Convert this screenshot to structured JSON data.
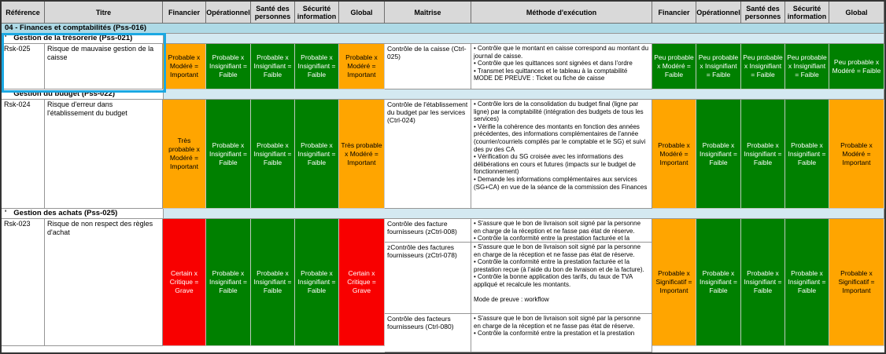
{
  "table": {
    "columns": [
      "Référence",
      "Titre",
      "Financier",
      "Opérationnel",
      "Santé des personnes",
      "Sécurité information",
      "Global",
      "Maîtrise",
      "Méthode d'exécution",
      "Financier",
      "Opérationnel",
      "Santé des personnes",
      "Sécurité information",
      "Global"
    ],
    "section": {
      "label": "04 - Finances et comptabilités (Pss-016)"
    },
    "colors": {
      "orange": "#FFA500",
      "green": "#008000",
      "red": "#F80000",
      "section_blue": "#AEDAE6",
      "subsection_blue": "#D4E9F1",
      "selection": "#1BA8E2",
      "header_gray": "#D9D9D9"
    },
    "groups": [
      {
        "prefix": "'",
        "label": "Gestion de la trésorerie (Pss-021)",
        "risk": {
          "ref": "Rsk-025",
          "title": "Risque de mauvaise gestion de la caisse",
          "inherent": [
            {
              "text": "Probable x Modéré = Important",
              "level": "orange"
            },
            {
              "text": "Probable x Insignifiant = Faible",
              "level": "green"
            },
            {
              "text": "Probable x Insignifiant = Faible",
              "level": "green"
            },
            {
              "text": "Probable x Insignifiant = Faible",
              "level": "green"
            },
            {
              "text": "Probable x Modéré = Important",
              "level": "orange"
            }
          ],
          "controls": [
            {
              "name": "Contrôle de la caisse (Ctrl-025)",
              "method": "• Contrôle que le montant en caisse correspond au montant du journal de caisse.\n• Contrôle que les quittances sont signées et dans l'ordre\n• Transmet les quittances et le tableau à la comptabilité\nMODE DE PREUVE : Ticket ou fiche de caisse"
            }
          ],
          "residual": [
            {
              "text": "Peu probable x Modéré = Faible",
              "level": "green"
            },
            {
              "text": "Peu probable x Insignifiant = Faible",
              "level": "green"
            },
            {
              "text": "Peu probable x Insignifiant = Faible",
              "level": "green"
            },
            {
              "text": "Peu probable x Insignifiant = Faible",
              "level": "green"
            },
            {
              "text": "Peu probable x Modéré = Faible",
              "level": "green"
            }
          ]
        }
      },
      {
        "prefix": "'",
        "label": "Gestion du budget (Pss-022)",
        "risk": {
          "ref": "Rsk-024",
          "title": "Risque d'erreur dans l'établissement du budget",
          "inherent": [
            {
              "text": "Très probable x Modéré = Important",
              "level": "orange"
            },
            {
              "text": "Probable x Insignifiant = Faible",
              "level": "green"
            },
            {
              "text": "Probable x Insignifiant = Faible",
              "level": "green"
            },
            {
              "text": "Probable x Insignifiant = Faible",
              "level": "green"
            },
            {
              "text": "Très probable x Modéré = Important",
              "level": "orange"
            }
          ],
          "controls": [
            {
              "name": "Contrôle de l'établissement du budget par les services (Ctrl-024)",
              "method": "• Contrôle lors de la consolidation du budget final (ligne par ligne) par la comptabilité (intégration des budgets de tous les services)\n• Vérifie la cohérence des montants en fonction des années précédentes, des informations complémentaires de l'année (courrier/courriels compilés par le comptable et le SG) et suivi des pv des CA\n• Vérification du SG croisée avec les informations des délibérations en cours et futures (impacts sur le budget de fonctionnement)\n• Demande les informations complémentaires aux services (SG+CA) en vue de la séance de la commission des Finances"
            }
          ],
          "residual": [
            {
              "text": "Probable x Modéré = Important",
              "level": "orange"
            },
            {
              "text": "Probable x Insignifiant = Faible",
              "level": "green"
            },
            {
              "text": "Probable x Insignifiant = Faible",
              "level": "green"
            },
            {
              "text": "Probable x Insignifiant = Faible",
              "level": "green"
            },
            {
              "text": "Probable x Modéré = Important",
              "level": "orange"
            }
          ]
        }
      },
      {
        "prefix": "'",
        "label": "Gestion des achats (Pss-025)",
        "risk": {
          "ref": "Rsk-023",
          "title": "Risque de non respect des règles d'achat",
          "inherent": [
            {
              "text": "Certain x Critique = Grave",
              "level": "red"
            },
            {
              "text": "Probable x Insignifiant = Faible",
              "level": "green"
            },
            {
              "text": "Probable x Insignifiant = Faible",
              "level": "green"
            },
            {
              "text": "Probable x Insignifiant = Faible",
              "level": "green"
            },
            {
              "text": "Certain x Critique = Grave",
              "level": "red"
            }
          ],
          "controls": [
            {
              "name": "Contrôle des facture fournisseurs (zCtrl-008)",
              "method": "• S'assure que le bon de livraison soit signé par la personne en charge de la réception et ne fasse pas état de réserve.\n• Contrôle la conformité entre la prestation facturée et la"
            },
            {
              "name": "zContrôle des factures fournisseurs (zCtrl-078)",
              "method": "• S'assure que le bon de livraison soit signé par la personne en charge de la réception et ne fasse pas état de réserve.\n• Contrôle la conformité entre la prestation facturée et la prestation reçue (à l'aide du bon de livraison et de la facture).\n• Contrôle la bonne application des tarifs, du taux de TVA appliqué et recalcule les montants.\n\nMode de preuve : workflow"
            },
            {
              "name": "Contrôle des facteurs fournisseurs (Ctrl-080)",
              "method": "• S'assure que le bon de livraison soit signé par la personne en charge de la réception et ne fasse pas état de réserve.\n• Contrôle la conformité entre la prestation et la prestation"
            }
          ],
          "residual": [
            {
              "text": "Probable x Significatif = Important",
              "level": "orange"
            },
            {
              "text": "Probable x Insignifiant = Faible",
              "level": "green"
            },
            {
              "text": "Probable x Insignifiant = Faible",
              "level": "green"
            },
            {
              "text": "Probable x Insignifiant = Faible",
              "level": "green"
            },
            {
              "text": "Probable x Significatif = Important",
              "level": "orange"
            }
          ]
        }
      }
    ]
  }
}
